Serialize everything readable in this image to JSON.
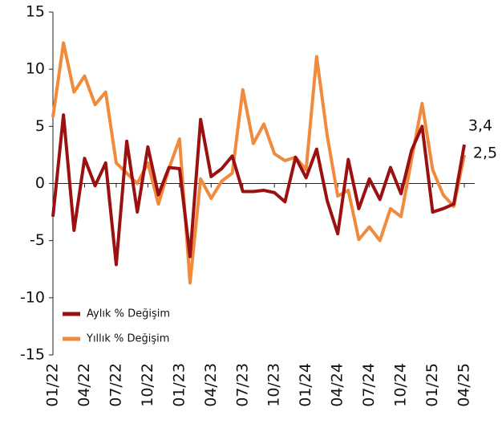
{
  "chart_data": {
    "type": "line",
    "categories": [
      "01/22",
      null,
      null,
      "04/22",
      null,
      null,
      "07/22",
      null,
      null,
      "10/22",
      null,
      null,
      "01/23",
      null,
      null,
      "04/23",
      null,
      null,
      "07/23",
      null,
      null,
      "10/23",
      null,
      null,
      "01/24",
      null,
      null,
      "04/24",
      null,
      null,
      "07/24",
      null,
      null,
      "10/24",
      null,
      null,
      "01/25",
      null,
      null,
      "04/25"
    ],
    "series": [
      {
        "name": "Aylık % Değişim",
        "color": "#9b1010",
        "values": [
          -2.9,
          6.0,
          -4.1,
          2.2,
          -0.2,
          1.8,
          -7.1,
          3.7,
          -2.5,
          3.2,
          -1.0,
          1.4,
          1.3,
          -6.4,
          5.6,
          0.6,
          1.3,
          2.4,
          -0.7,
          -0.7,
          -0.6,
          -0.8,
          -1.6,
          2.3,
          0.5,
          3.0,
          -1.5,
          -4.4,
          2.1,
          -2.2,
          0.4,
          -1.4,
          1.4,
          -0.9,
          2.9,
          5.0,
          -2.5,
          -2.2,
          -1.8,
          3.4
        ],
        "value_labels": [
          null,
          null,
          null,
          null,
          null,
          null,
          null,
          null,
          null,
          null,
          null,
          null,
          null,
          null,
          null,
          null,
          null,
          null,
          null,
          null,
          null,
          null,
          null,
          null,
          null,
          null,
          null,
          null,
          null,
          null,
          null,
          null,
          null,
          null,
          null,
          null,
          null,
          null,
          null,
          "3,4"
        ]
      },
      {
        "name": "Yıllık % Değişim",
        "color": "#f08a3c",
        "values": [
          5.8,
          12.3,
          8.0,
          9.4,
          6.9,
          8.0,
          1.8,
          0.9,
          0.0,
          1.8,
          -1.8,
          1.3,
          3.9,
          -8.7,
          0.4,
          -1.3,
          0.2,
          0.9,
          8.2,
          3.5,
          5.2,
          2.6,
          2.0,
          2.3,
          1.2,
          11.1,
          4.2,
          -1.1,
          -0.6,
          -4.9,
          -3.8,
          -5.0,
          -2.2,
          -2.9,
          2.1,
          7.0,
          1.2,
          -1.0,
          -2.0,
          2.5
        ],
        "value_labels": [
          null,
          null,
          null,
          null,
          null,
          null,
          null,
          null,
          null,
          null,
          null,
          null,
          null,
          null,
          null,
          null,
          null,
          null,
          null,
          null,
          null,
          null,
          null,
          null,
          null,
          null,
          null,
          null,
          null,
          null,
          null,
          null,
          null,
          null,
          null,
          null,
          null,
          null,
          null,
          "2,5"
        ]
      }
    ],
    "ylim": [
      -15,
      15
    ],
    "yticks": [
      -15,
      -10,
      -5,
      0,
      5,
      10,
      15
    ],
    "legend": "lower left"
  }
}
